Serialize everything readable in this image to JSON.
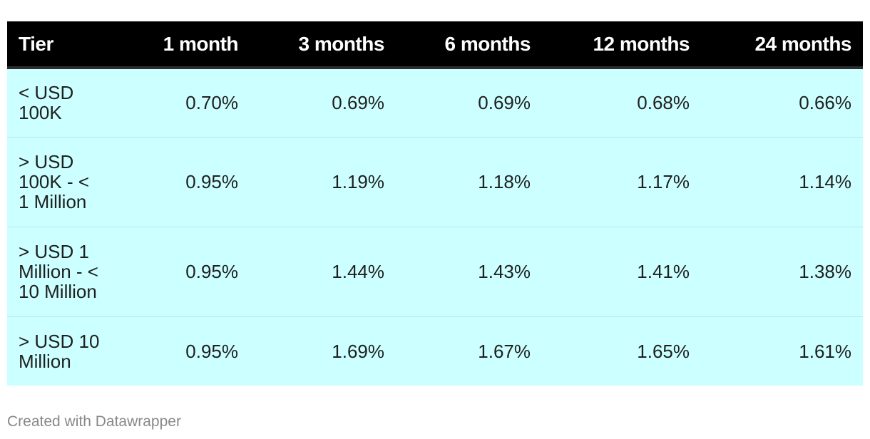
{
  "chart_data": {
    "type": "table",
    "columns": [
      "Tier",
      "1 month",
      "3 months",
      "6 months",
      "12 months",
      "24 months"
    ],
    "rows": [
      {
        "tier": "< USD 100K",
        "values": [
          "0.70%",
          "0.69%",
          "0.69%",
          "0.68%",
          "0.66%"
        ]
      },
      {
        "tier": "> USD 100K - < 1 Million",
        "values": [
          "0.95%",
          "1.19%",
          "1.18%",
          "1.17%",
          "1.14%"
        ]
      },
      {
        "tier": "> USD 1 Million - < 10 Million",
        "values": [
          "0.95%",
          "1.44%",
          "1.43%",
          "1.41%",
          "1.38%"
        ]
      },
      {
        "tier": "> USD 10 Million",
        "values": [
          "0.95%",
          "1.69%",
          "1.67%",
          "1.65%",
          "1.61%"
        ]
      }
    ],
    "colors": {
      "header_bg": "#000000",
      "header_text": "#ffffff",
      "row_bg": "#ccffff"
    }
  },
  "footer": {
    "credit": "Created with Datawrapper"
  }
}
